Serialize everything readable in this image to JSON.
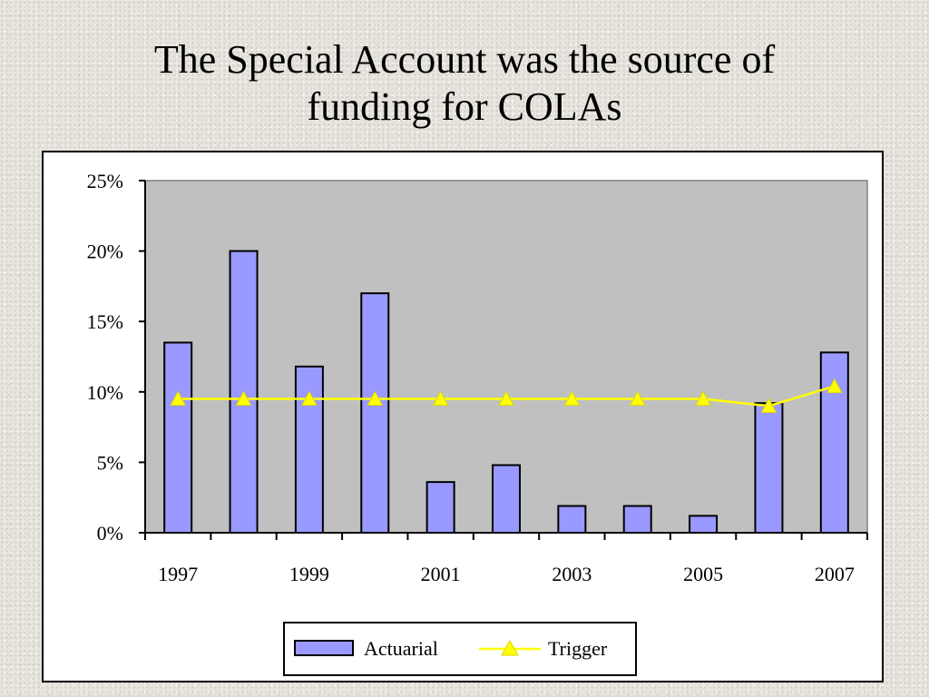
{
  "slide": {
    "title_line1": "The Special Account was the source of",
    "title_line2": "funding for COLAs"
  },
  "chart_data": {
    "type": "bar",
    "title": "",
    "xlabel": "",
    "ylabel": "",
    "categories": [
      "1997",
      "1998",
      "1999",
      "2000",
      "2001",
      "2002",
      "2003",
      "2004",
      "2005",
      "2006",
      "2007"
    ],
    "x_tick_labels": [
      "1997",
      "1999",
      "2001",
      "2003",
      "2005",
      "2007"
    ],
    "y_tick_labels": [
      "0%",
      "5%",
      "10%",
      "15%",
      "20%",
      "25%"
    ],
    "ylim": [
      0,
      25
    ],
    "y_unit": "%",
    "grid": false,
    "plot_background": "#c0c0c0",
    "legend_position": "bottom",
    "series": [
      {
        "name": "Actuarial",
        "kind": "bar",
        "color": "#9999ff",
        "values": [
          13.5,
          20.0,
          11.8,
          17.0,
          3.6,
          4.8,
          1.9,
          1.9,
          1.2,
          9.2,
          12.8
        ]
      },
      {
        "name": "Trigger",
        "kind": "line",
        "marker": "triangle",
        "color": "#ffff00",
        "values": [
          9.5,
          9.5,
          9.5,
          9.5,
          9.5,
          9.5,
          9.5,
          9.5,
          9.5,
          9.0,
          10.4
        ]
      }
    ]
  }
}
